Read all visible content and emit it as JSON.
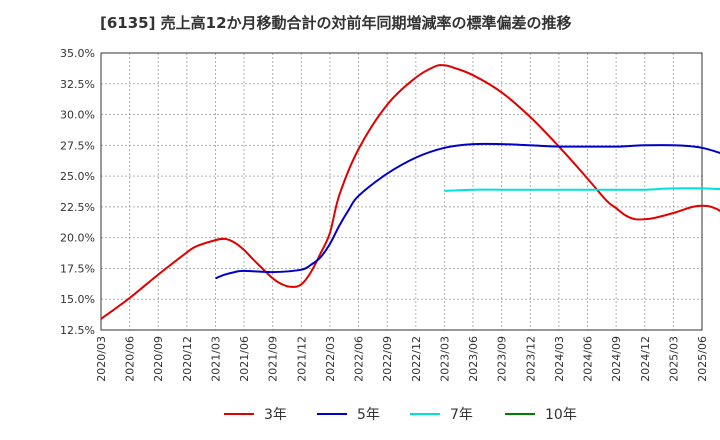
{
  "chart_data": {
    "type": "line",
    "title": "[6135]  売上高12か月移動合計の対前年同期増減率の標準偏差の推移",
    "xlabel": "",
    "ylabel": "",
    "ylim": [
      12.5,
      35.0
    ],
    "yticks": [
      "12.5%",
      "15.0%",
      "17.5%",
      "20.0%",
      "22.5%",
      "25.0%",
      "27.5%",
      "30.0%",
      "32.5%",
      "35.0%"
    ],
    "xticks": [
      "2020/03",
      "2020/06",
      "2020/09",
      "2020/12",
      "2021/03",
      "2021/06",
      "2021/09",
      "2021/12",
      "2022/03",
      "2022/06",
      "2022/09",
      "2022/12",
      "2023/03",
      "2023/06",
      "2023/09",
      "2023/12",
      "2024/03",
      "2024/06",
      "2024/09",
      "2024/12",
      "2025/03",
      "2025/06"
    ],
    "grid": true,
    "legend": "bottom",
    "series": [
      {
        "name": "3年",
        "color": "#e00000",
        "points": [
          [
            "2020/03",
            13.4
          ],
          [
            "2020/06",
            15.1
          ],
          [
            "2020/09",
            17.0
          ],
          [
            "2020/12",
            18.8
          ],
          [
            "2021/01",
            19.3
          ],
          [
            "2021/03",
            19.8
          ],
          [
            "2021/04",
            19.9
          ],
          [
            "2021/05",
            19.6
          ],
          [
            "2021/06",
            19.0
          ],
          [
            "2021/07",
            18.2
          ],
          [
            "2021/09",
            16.7
          ],
          [
            "2021/10",
            16.2
          ],
          [
            "2021/11",
            16.0
          ],
          [
            "2021/12",
            16.2
          ],
          [
            "2022/01",
            17.2
          ],
          [
            "2022/02",
            18.7
          ],
          [
            "2022/03",
            20.4
          ],
          [
            "2022/04",
            23.5
          ],
          [
            "2022/06",
            27.2
          ],
          [
            "2022/09",
            30.8
          ],
          [
            "2022/12",
            33.0
          ],
          [
            "2023/02",
            33.9
          ],
          [
            "2023/03",
            34.0
          ],
          [
            "2023/04",
            33.8
          ],
          [
            "2023/06",
            33.2
          ],
          [
            "2023/09",
            31.8
          ],
          [
            "2023/12",
            29.8
          ],
          [
            "2024/03",
            27.4
          ],
          [
            "2024/06",
            24.8
          ],
          [
            "2024/08",
            23.0
          ],
          [
            "2024/09",
            22.4
          ],
          [
            "2024/10",
            21.8
          ],
          [
            "2024/11",
            21.5
          ],
          [
            "2024/12",
            21.5
          ],
          [
            "2025/01",
            21.6
          ],
          [
            "2025/03",
            22.0
          ],
          [
            "2025/05",
            22.5
          ],
          [
            "2025/06",
            22.6
          ],
          [
            "2025/07",
            22.5
          ],
          [
            "2025/08",
            22.1
          ],
          [
            "2025/09",
            21.1
          ]
        ]
      },
      {
        "name": "5年",
        "color": "#0000c8",
        "points": [
          [
            "2021/03",
            16.7
          ],
          [
            "2021/04",
            17.0
          ],
          [
            "2021/05",
            17.2
          ],
          [
            "2021/06",
            17.3
          ],
          [
            "2021/09",
            17.2
          ],
          [
            "2021/12",
            17.4
          ],
          [
            "2022/01",
            17.8
          ],
          [
            "2022/02",
            18.4
          ],
          [
            "2022/03",
            19.5
          ],
          [
            "2022/04",
            21.0
          ],
          [
            "2022/05",
            22.3
          ],
          [
            "2022/06",
            23.4
          ],
          [
            "2022/09",
            25.2
          ],
          [
            "2022/12",
            26.5
          ],
          [
            "2023/03",
            27.3
          ],
          [
            "2023/06",
            27.6
          ],
          [
            "2023/09",
            27.6
          ],
          [
            "2023/12",
            27.5
          ],
          [
            "2024/03",
            27.4
          ],
          [
            "2024/06",
            27.4
          ],
          [
            "2024/09",
            27.4
          ],
          [
            "2024/12",
            27.5
          ],
          [
            "2025/03",
            27.5
          ],
          [
            "2025/06",
            27.3
          ],
          [
            "2025/09",
            26.6
          ]
        ]
      },
      {
        "name": "7年",
        "color": "#00e0e0",
        "points": [
          [
            "2023/03",
            23.8
          ],
          [
            "2023/06",
            23.9
          ],
          [
            "2023/09",
            23.9
          ],
          [
            "2023/12",
            23.9
          ],
          [
            "2024/03",
            23.9
          ],
          [
            "2024/06",
            23.9
          ],
          [
            "2024/09",
            23.9
          ],
          [
            "2024/12",
            23.9
          ],
          [
            "2025/03",
            24.0
          ],
          [
            "2025/06",
            24.0
          ],
          [
            "2025/09",
            23.9
          ]
        ]
      },
      {
        "name": "10年",
        "color": "#008000",
        "points": []
      }
    ]
  }
}
